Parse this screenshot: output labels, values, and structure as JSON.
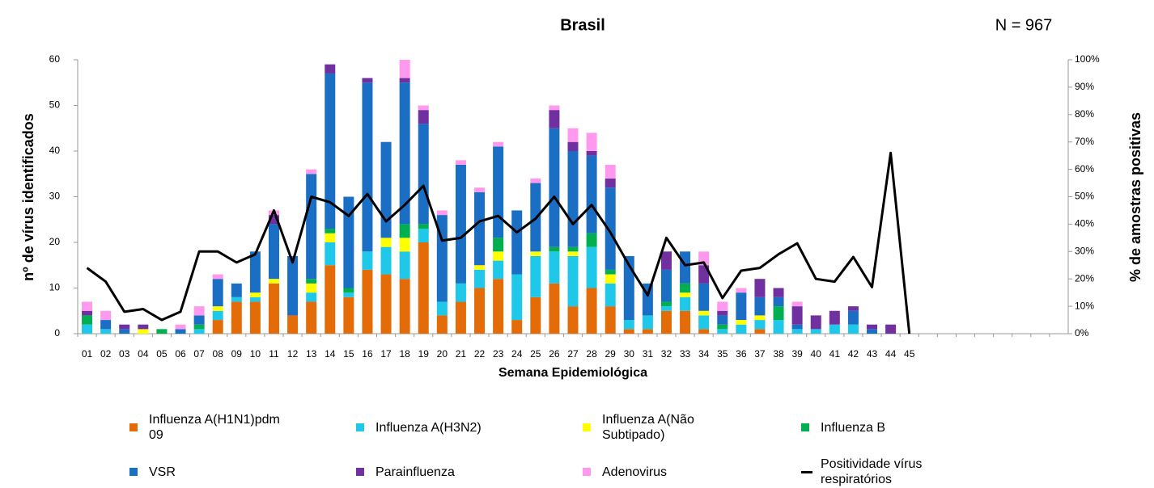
{
  "chart_data": {
    "type": "bar",
    "stacked": true,
    "title": "Brasil",
    "annotation": "N = 967",
    "y_label": "nº de vírus identificados",
    "y2_label": "% de amostras positivas",
    "x_label": "Semana Epidemiológica",
    "categories": [
      "01",
      "02",
      "03",
      "04",
      "05",
      "06",
      "07",
      "08",
      "09",
      "10",
      "11",
      "12",
      "13",
      "14",
      "15",
      "16",
      "17",
      "18",
      "19",
      "20",
      "21",
      "22",
      "23",
      "24",
      "25",
      "26",
      "27",
      "28",
      "29",
      "30",
      "31",
      "32",
      "33",
      "34",
      "35",
      "36",
      "37",
      "38",
      "39",
      "40",
      "41",
      "42",
      "43",
      "44",
      "45",
      null,
      null,
      null,
      null,
      null,
      null,
      null,
      null
    ],
    "ylim": [
      0,
      60
    ],
    "yticks": [
      0,
      10,
      20,
      30,
      40,
      50,
      60
    ],
    "y2lim": [
      0,
      100
    ],
    "y2ticks": [
      {
        "value": 0,
        "label": "0%"
      },
      {
        "value": 10,
        "label": "10%"
      },
      {
        "value": 20,
        "label": "20%"
      },
      {
        "value": 30,
        "label": "30%"
      },
      {
        "value": 40,
        "label": "40%"
      },
      {
        "value": 50,
        "label": "50%"
      },
      {
        "value": 60,
        "label": "60%"
      },
      {
        "value": 70,
        "label": "70%"
      },
      {
        "value": 80,
        "label": "80%"
      },
      {
        "value": 90,
        "label": "90%"
      },
      {
        "value": 100,
        "label": "100%"
      }
    ],
    "grid": false,
    "series": [
      {
        "name": "Influenza A(H1N1)pdm 09",
        "color": "#e36c09",
        "values": [
          0,
          0,
          0,
          0,
          0,
          0,
          0,
          3,
          7,
          7,
          11,
          4,
          7,
          15,
          8,
          14,
          13,
          12,
          20,
          4,
          7,
          10,
          12,
          3,
          8,
          11,
          6,
          10,
          6,
          1,
          1,
          5,
          5,
          1,
          0,
          0,
          1,
          0,
          0,
          0,
          0,
          0,
          0,
          0,
          0,
          null,
          null,
          null,
          null,
          null,
          null,
          null,
          null
        ]
      },
      {
        "name": "Influenza A(H3N2)",
        "color": "#1fc8e8",
        "values": [
          2,
          1,
          0,
          0,
          0,
          0,
          1,
          2,
          1,
          1,
          0,
          0,
          2,
          5,
          1,
          4,
          6,
          6,
          3,
          3,
          4,
          4,
          4,
          10,
          9,
          7,
          11,
          9,
          5,
          2,
          3,
          1,
          3,
          3,
          1,
          2,
          2,
          3,
          1,
          1,
          2,
          2,
          0,
          0,
          0,
          null,
          null,
          null,
          null,
          null,
          null,
          null,
          null
        ]
      },
      {
        "name": "Influenza A(Não Subtipado)",
        "color": "#ffff00",
        "values": [
          0,
          0,
          0,
          1,
          0,
          0,
          0,
          1,
          0,
          1,
          1,
          0,
          2,
          2,
          0,
          0,
          2,
          3,
          0,
          0,
          0,
          1,
          2,
          0,
          1,
          0,
          1,
          0,
          2,
          0,
          0,
          0,
          1,
          1,
          0,
          1,
          1,
          0,
          0,
          0,
          0,
          0,
          0,
          0,
          0,
          null,
          null,
          null,
          null,
          null,
          null,
          null,
          null
        ]
      },
      {
        "name": "Influenza B",
        "color": "#00b050",
        "values": [
          2,
          0,
          0,
          0,
          1,
          0,
          1,
          0,
          0,
          0,
          0,
          0,
          1,
          1,
          1,
          0,
          0,
          3,
          1,
          0,
          0,
          0,
          3,
          0,
          0,
          1,
          1,
          3,
          1,
          0,
          0,
          1,
          2,
          0,
          1,
          0,
          0,
          3,
          0,
          0,
          0,
          0,
          0,
          0,
          0,
          null,
          null,
          null,
          null,
          null,
          null,
          null,
          null
        ]
      },
      {
        "name": "VSR",
        "color": "#1a6fc4",
        "values": [
          0,
          2,
          1,
          0,
          0,
          1,
          2,
          6,
          3,
          9,
          12,
          13,
          23,
          34,
          20,
          37,
          21,
          31,
          22,
          19,
          26,
          16,
          20,
          14,
          15,
          26,
          21,
          17,
          18,
          14,
          7,
          7,
          7,
          6,
          2,
          6,
          4,
          2,
          1,
          0,
          0,
          3,
          1,
          0,
          0,
          null,
          null,
          null,
          null,
          null,
          null,
          null,
          null
        ]
      },
      {
        "name": "Parainfluenza",
        "color": "#7030a0",
        "values": [
          1,
          0,
          1,
          1,
          0,
          0,
          0,
          0,
          0,
          0,
          2,
          0,
          0,
          2,
          0,
          1,
          0,
          1,
          3,
          0,
          0,
          0,
          0,
          0,
          0,
          4,
          2,
          1,
          2,
          0,
          0,
          4,
          0,
          4,
          1,
          0,
          4,
          2,
          4,
          3,
          3,
          1,
          1,
          2,
          0,
          null,
          null,
          null,
          null,
          null,
          null,
          null,
          null
        ]
      },
      {
        "name": "Adenovirus",
        "color": "#ff99ee",
        "values": [
          2,
          2,
          0,
          0,
          0,
          1,
          2,
          1,
          0,
          0,
          1,
          0,
          1,
          0,
          0,
          0,
          0,
          4,
          1,
          1,
          1,
          1,
          1,
          0,
          1,
          1,
          3,
          4,
          3,
          0,
          0,
          0,
          0,
          3,
          2,
          1,
          0,
          0,
          1,
          0,
          0,
          0,
          0,
          0,
          0,
          null,
          null,
          null,
          null,
          null,
          null,
          null,
          null
        ]
      },
      {
        "name": "Positividade vírus respiratórios",
        "type": "line",
        "axis": "y2",
        "color": "#000000",
        "values": [
          24,
          19,
          8,
          9,
          5,
          8,
          30,
          30,
          26,
          29,
          45,
          26,
          50,
          48,
          43,
          51,
          41,
          47,
          54,
          34,
          35,
          41,
          43,
          37,
          42,
          50,
          40,
          47,
          37,
          25,
          14,
          35,
          25,
          26,
          13,
          23,
          24,
          29,
          33,
          20,
          19,
          28,
          17,
          66,
          0,
          null,
          null,
          null,
          null,
          null,
          null,
          null,
          null
        ]
      }
    ]
  }
}
